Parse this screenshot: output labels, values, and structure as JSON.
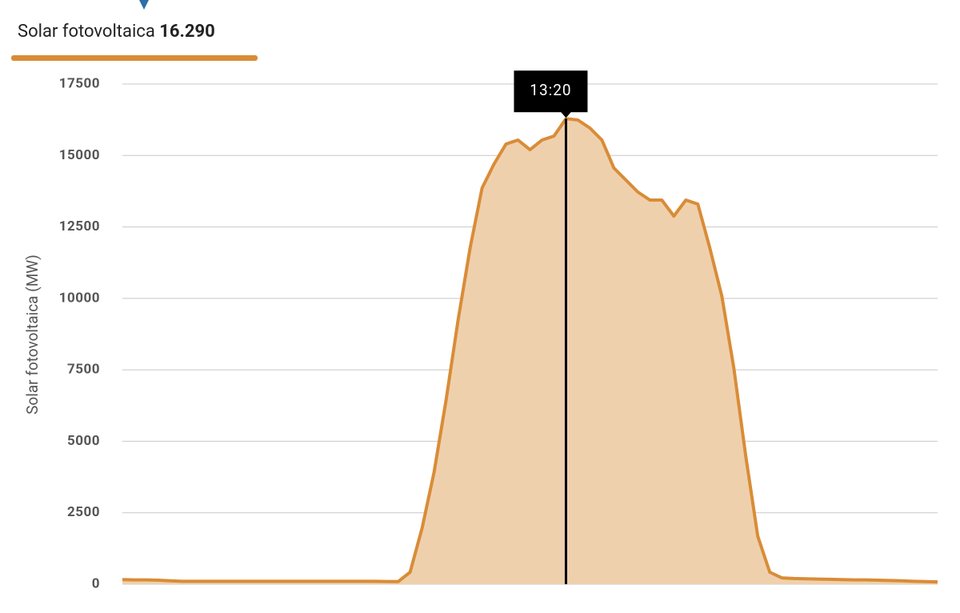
{
  "chart_data": {
    "type": "area",
    "series_name": "Solar fotovoltaica",
    "y_axis_label": "Solar fotovoltaica (MW)",
    "color": "#d98c37",
    "fill_color": "#efd0ad",
    "highlight": {
      "label": "13:20",
      "value": 16290,
      "value_label": "16.290"
    },
    "values": [
      160,
      150,
      150,
      140,
      120,
      100,
      100,
      100,
      100,
      100,
      100,
      100,
      100,
      100,
      100,
      100,
      100,
      100,
      100,
      100,
      100,
      100,
      95,
      90,
      420,
      1960,
      3920,
      6440,
      9240,
      11760,
      13860,
      14700,
      15400,
      15540,
      15200,
      15540,
      15680,
      16290,
      16240,
      15960,
      15540,
      14560,
      14140,
      13720,
      13440,
      13440,
      12880,
      13440,
      13300,
      11760,
      10080,
      7560,
      4480,
      1680,
      420,
      220,
      200,
      190,
      180,
      170,
      160,
      150,
      150,
      140,
      130,
      120,
      100,
      90,
      80
    ],
    "ylim": [
      0,
      17500
    ],
    "yticks": [
      0,
      2500,
      5000,
      7500,
      10000,
      12500,
      15000,
      17500
    ],
    "grid": true
  }
}
